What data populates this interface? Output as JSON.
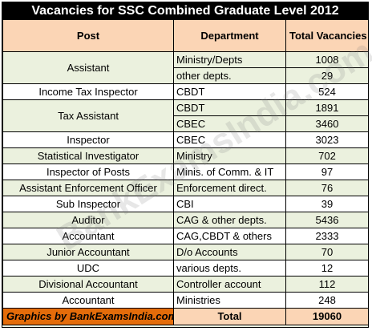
{
  "title": "Vacancies for SSC Combined Graduate Level 2012",
  "headers": {
    "post": "Post",
    "department": "Department",
    "total": "Total Vacancies"
  },
  "rows": [
    {
      "post": "Assistant",
      "department": "Ministry/Depts",
      "vacancies": "1008"
    },
    {
      "post": "",
      "department": "other depts.",
      "vacancies": "29"
    },
    {
      "post": "Income Tax Inspector",
      "department": "CBDT",
      "vacancies": "524"
    },
    {
      "post": "Tax Assistant",
      "department": "CBDT",
      "vacancies": "1891"
    },
    {
      "post": "",
      "department": "CBEC",
      "vacancies": "3460"
    },
    {
      "post": "Inspector",
      "department": "CBEC",
      "vacancies": "3023"
    },
    {
      "post": "Statistical Investigator",
      "department": "Ministry",
      "vacancies": "702"
    },
    {
      "post": "Inspector of Posts",
      "department": "Minis. of Comm. & IT",
      "vacancies": "97"
    },
    {
      "post": "Assistant Enforcement Officer",
      "department": "Enforcement direct.",
      "vacancies": "76"
    },
    {
      "post": "Sub Inspector",
      "department": "CBI",
      "vacancies": "39"
    },
    {
      "post": "Auditor",
      "department": "CAG & other depts.",
      "vacancies": "5436"
    },
    {
      "post": "Accountant",
      "department": "CAG,CBDT & others",
      "vacancies": "2333"
    },
    {
      "post": "Junior Accountant",
      "department": "D/o Accounts",
      "vacancies": "70"
    },
    {
      "post": "UDC",
      "department": "various depts.",
      "vacancies": "12"
    },
    {
      "post": "Divisional Accountant",
      "department": "Controller account",
      "vacancies": "112"
    },
    {
      "post": "Accountant",
      "department": "Ministries",
      "vacancies": "248"
    }
  ],
  "footer": {
    "credit": "Graphics by BankExamsIndia.com",
    "total_label": "Total",
    "total_value": "19060"
  },
  "watermark": "BankExamsIndia.com"
}
